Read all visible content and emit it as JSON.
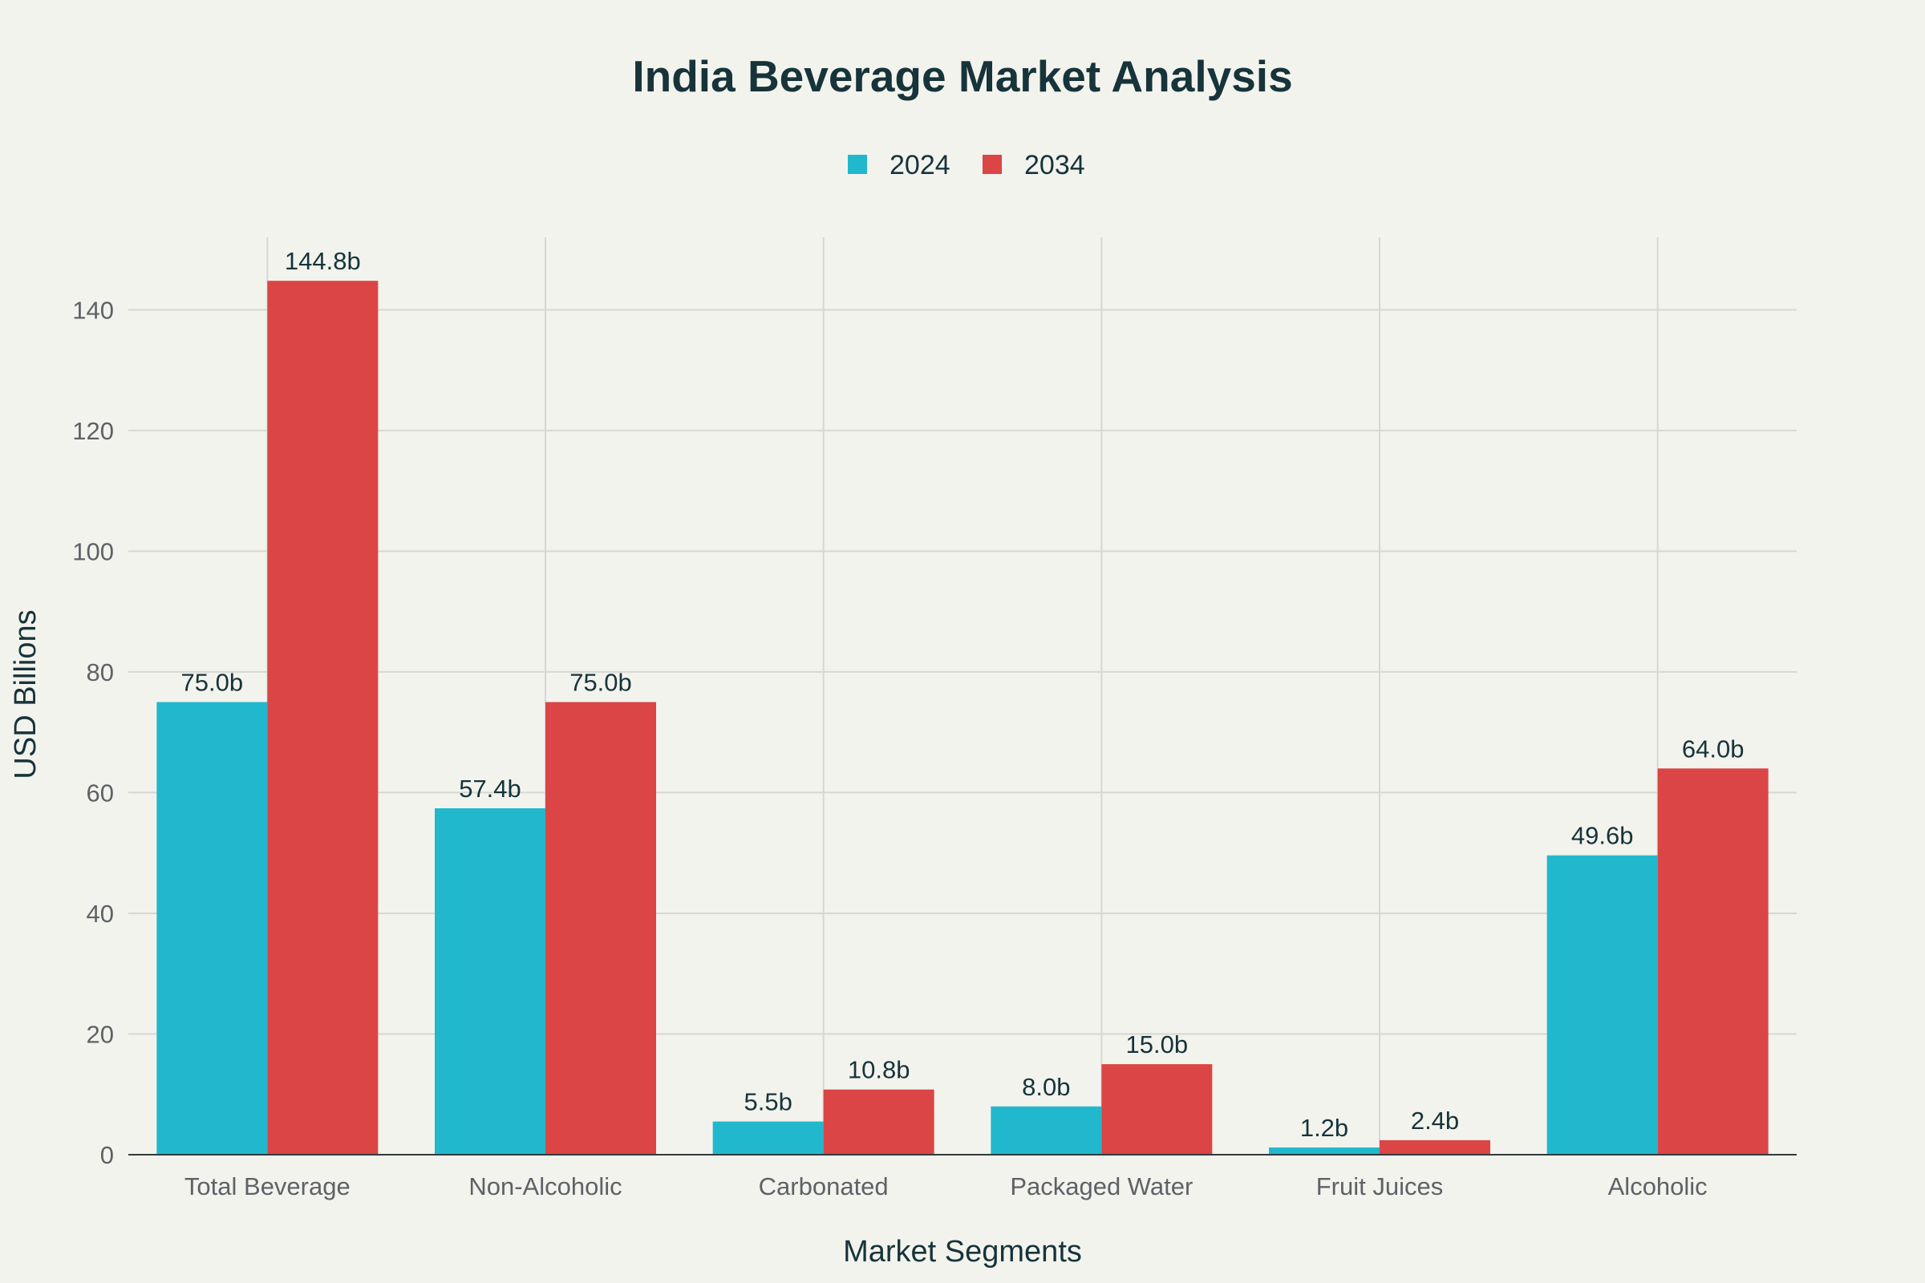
{
  "chart_data": {
    "type": "bar",
    "title": "India Beverage Market Analysis",
    "xlabel": "Market Segments",
    "ylabel": "USD Billions",
    "ylim": [
      0,
      152
    ],
    "yticks": [
      0,
      20,
      40,
      60,
      80,
      100,
      120,
      140
    ],
    "categories": [
      "Total Beverage",
      "Non-Alcoholic",
      "Carbonated",
      "Packaged Water",
      "Fruit Juices",
      "Alcoholic"
    ],
    "series": [
      {
        "name": "2024",
        "color": "#21b8cd",
        "values": [
          75.0,
          57.4,
          5.5,
          8.0,
          1.2,
          49.6
        ],
        "labels": [
          "75.0b",
          "57.4b",
          "5.5b",
          "8.0b",
          "1.2b",
          "49.6b"
        ]
      },
      {
        "name": "2034",
        "color": "#db4545",
        "values": [
          144.8,
          75.0,
          10.8,
          15.0,
          2.4,
          64.0
        ],
        "labels": [
          "144.8b",
          "75.0b",
          "10.8b",
          "15.0b",
          "2.4b",
          "64.0b"
        ]
      }
    ],
    "legend": "top-center",
    "grid": true
  }
}
